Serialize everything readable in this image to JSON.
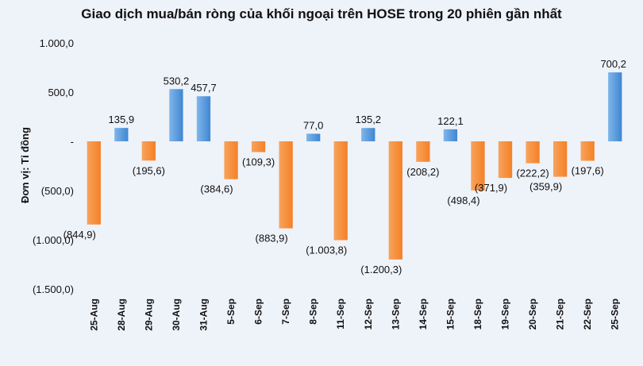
{
  "chart_data": {
    "type": "bar",
    "title": "Giao dịch mua/bán ròng của khối ngoại trên HOSE trong 20 phiên gần nhất",
    "ylabel": "Đơn vị: Tỉ đồng",
    "xlabel": "",
    "ylim": [
      -1500,
      1000
    ],
    "yticks": [
      1000,
      500,
      0,
      -500,
      -1000,
      -1500
    ],
    "ytick_labels": [
      "1.000,0",
      "500,0",
      "-",
      "(500,0)",
      "(1.000,0)",
      "(1.500,0)"
    ],
    "categories": [
      "25-Aug",
      "28-Aug",
      "29-Aug",
      "30-Aug",
      "31-Aug",
      "5-Sep",
      "6-Sep",
      "7-Sep",
      "8-Sep",
      "11-Sep",
      "12-Sep",
      "13-Sep",
      "14-Sep",
      "15-Sep",
      "18-Sep",
      "19-Sep",
      "20-Sep",
      "21-Sep",
      "22-Sep",
      "25-Sep"
    ],
    "values": [
      -844.9,
      135.9,
      -195.6,
      530.2,
      457.7,
      -384.6,
      -109.3,
      -883.9,
      77.0,
      -1003.8,
      135.2,
      -1200.3,
      -208.2,
      122.1,
      -498.4,
      -371.9,
      -222.2,
      -359.9,
      -197.6,
      700.2
    ],
    "value_labels": [
      "(844,9)",
      "135,9",
      "(195,6)",
      "530,2",
      "457,7",
      "(384,6)",
      "(109,3)",
      "(883,9)",
      "77,0",
      "(1.003,8)",
      "135,2",
      "(1.200,3)",
      "(208,2)",
      "122,1",
      "(498,4)",
      "(371,9)",
      "(222,2)",
      "(359,9)",
      "(197,6)",
      "700,2"
    ],
    "colors": {
      "positive": "#4a90d9",
      "negative": "#f58a2e"
    },
    "grid": false,
    "legend": "none"
  }
}
